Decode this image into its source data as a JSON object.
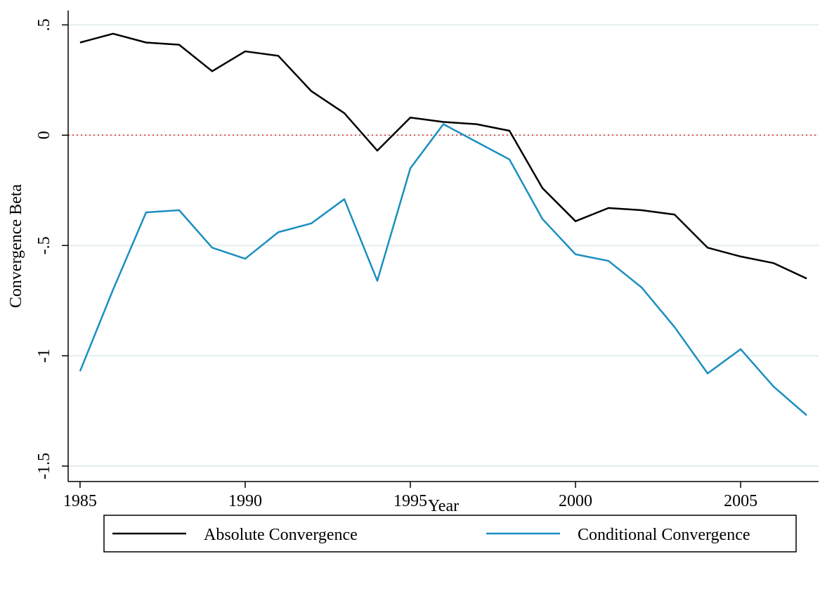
{
  "chart_data": {
    "type": "line",
    "x_label": "Year",
    "y_label": "Convergence Beta",
    "x": [
      1985,
      1986,
      1987,
      1988,
      1989,
      1990,
      1991,
      1992,
      1993,
      1994,
      1995,
      1996,
      1997,
      1998,
      1999,
      2000,
      2001,
      2002,
      2003,
      2004,
      2005,
      2006,
      2007
    ],
    "series": [
      {
        "name": "Absolute Convergence",
        "color": "#000000",
        "values": [
          0.42,
          0.46,
          0.42,
          0.41,
          0.29,
          0.38,
          0.36,
          0.2,
          0.1,
          -0.07,
          0.08,
          0.06,
          0.05,
          0.02,
          -0.24,
          -0.39,
          -0.33,
          -0.34,
          -0.36,
          -0.51,
          -0.55,
          -0.58,
          -0.65
        ]
      },
      {
        "name": "Conditional Convergence",
        "color": "#1a8fbf",
        "values": [
          -1.07,
          -0.7,
          -0.35,
          -0.34,
          -0.51,
          -0.56,
          -0.44,
          -0.4,
          -0.29,
          -0.66,
          -0.15,
          0.05,
          -0.03,
          -0.11,
          -0.38,
          -0.54,
          -0.57,
          -0.69,
          -0.87,
          -1.08,
          -0.97,
          -1.14,
          -1.27
        ]
      }
    ],
    "xlim": [
      1984.64,
      2007.36
    ],
    "xticks": [
      1985,
      1990,
      1995,
      2000,
      2005
    ],
    "ylim": [
      -1.57,
      0.565
    ],
    "yticks": [
      {
        "value": 0.5,
        "label": ".5"
      },
      0,
      {
        "value": -0.5,
        "label": "-.5"
      },
      -1,
      -1.5
    ],
    "grid": true,
    "grid_color": "#e4eef0",
    "ref_line": 0,
    "ref_line_color": "#e03030",
    "legend_position": "bottom"
  }
}
